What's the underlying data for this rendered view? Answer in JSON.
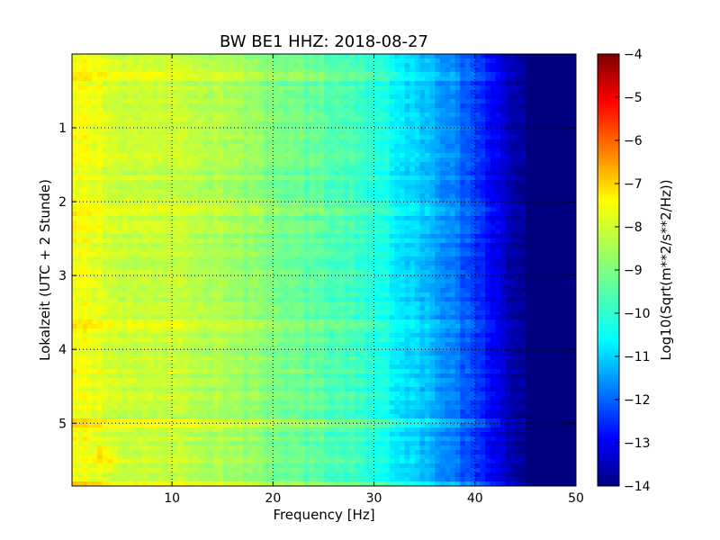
{
  "chart_data": {
    "type": "heatmap",
    "title": "BW BE1 HHZ: 2018-08-27",
    "xlabel": "Frequency [Hz]",
    "ylabel": "Lokalzeit (UTC + 2 Stunde)",
    "xlim": [
      0.1,
      50
    ],
    "ylim": [
      0.0,
      5.85
    ],
    "y_inverted": true,
    "x_ticks": [
      10,
      20,
      30,
      40,
      50
    ],
    "y_ticks": [
      1,
      2,
      3,
      4,
      5
    ],
    "grid": true,
    "colormap": "jet",
    "colorbar": {
      "label": "Log10(Sqrt(m**2/s**2/Hz))",
      "range": [
        -14,
        -4
      ],
      "ticks": [
        -4,
        -5,
        -6,
        -7,
        -8,
        -9,
        -10,
        -11,
        -12,
        -13,
        -14
      ]
    },
    "spectrum_profile": {
      "frequency_hz": [
        0,
        2,
        5,
        10,
        15,
        20,
        25,
        30,
        32,
        35,
        38,
        40,
        42,
        44,
        46,
        50
      ],
      "log10_amplitude": [
        -7.9,
        -7.9,
        -8.2,
        -8.3,
        -8.6,
        -9.0,
        -9.4,
        -9.8,
        -10.3,
        -10.9,
        -11.6,
        -12.2,
        -12.9,
        -13.7,
        -14.0,
        -14.0
      ]
    },
    "bright_bands_hours": [
      0.3,
      2.15,
      3.65,
      4.98,
      5.82
    ],
    "hotspot": {
      "hour": 5.45,
      "frequency_hz": 3.5,
      "log10_amplitude": -7.3
    }
  }
}
